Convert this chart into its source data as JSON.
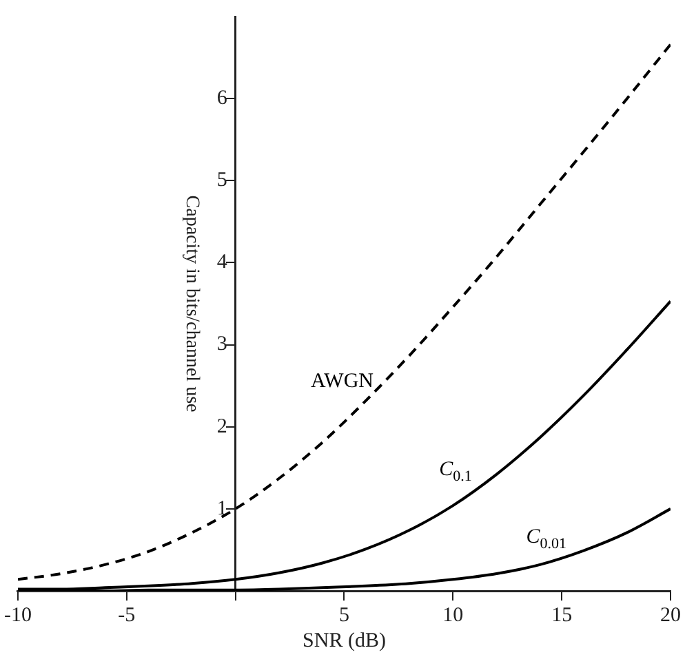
{
  "chart_data": {
    "type": "line",
    "xlabel": "SNR (dB)",
    "ylabel": "Capacity in bits/channel use",
    "x": [
      -10,
      -8,
      -6,
      -4,
      -2,
      0,
      2,
      4,
      6,
      8,
      10,
      12,
      14,
      16,
      18,
      20
    ],
    "series": [
      {
        "name": "AWGN",
        "color": "#000000",
        "line_style": "dashed",
        "values": [
          0.14,
          0.21,
          0.32,
          0.48,
          0.71,
          1,
          1.37,
          1.81,
          2.32,
          2.87,
          3.46,
          4.07,
          4.71,
          5.35,
          6.0,
          6.66
        ]
      },
      {
        "name": "C$_{0.1}$",
        "color": "#000000",
        "line_style": "solid",
        "values": [
          0.02,
          0.02,
          0.04,
          0.06,
          0.09,
          0.14,
          0.22,
          0.34,
          0.51,
          0.74,
          1.04,
          1.42,
          1.87,
          2.38,
          2.94,
          3.53
        ]
      },
      {
        "name": "C$_{0.01}$",
        "color": "#000000",
        "line_style": "solid",
        "values": [
          0,
          0,
          0,
          0.01,
          0.01,
          0.01,
          0.02,
          0.04,
          0.06,
          0.09,
          0.14,
          0.21,
          0.32,
          0.49,
          0.71,
          1.0
        ]
      }
    ],
    "xlim": [
      -10,
      20
    ],
    "xticks": [
      -10,
      -5,
      {
        "value": 0,
        "label": null
      },
      5,
      10,
      15,
      20
    ],
    "ylim": [
      0,
      7
    ],
    "yticks": [
      1,
      2,
      3,
      4,
      5,
      6
    ],
    "grid": false,
    "legend": false,
    "marker": "none"
  }
}
